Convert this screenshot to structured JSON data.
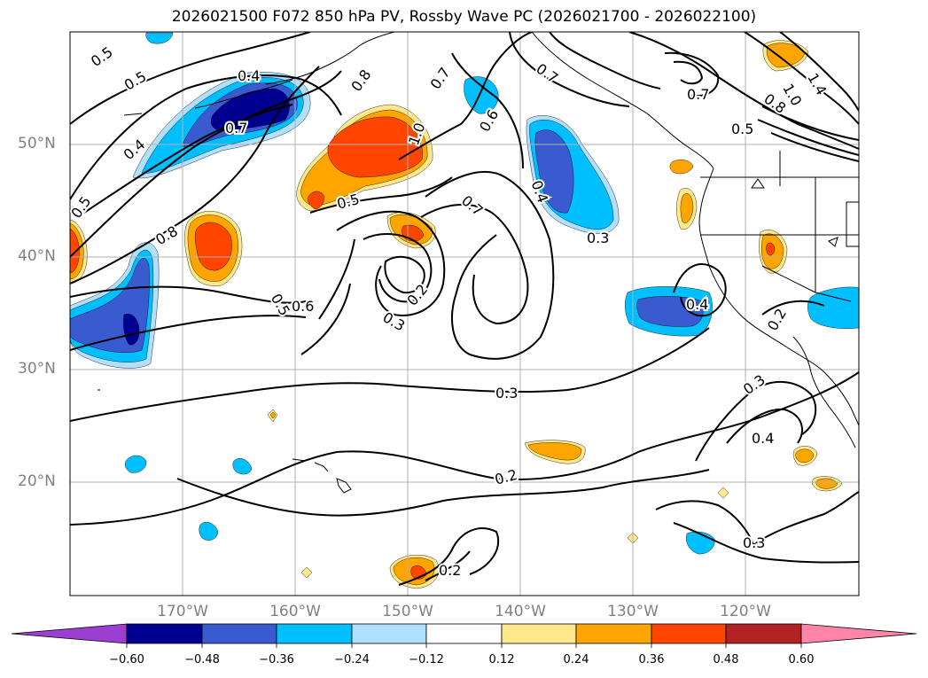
{
  "title": "2026021500 F072 850 hPa PV, Rossby Wave PC (2026021700 - 2026022100)",
  "lat_labels": [
    "50°N",
    "40°N",
    "30°N",
    "20°N"
  ],
  "lon_labels": [
    "170°W",
    "160°W",
    "150°W",
    "140°W",
    "130°W",
    "120°W"
  ],
  "contour_labels": [
    "0.5",
    "0.5",
    "0.4",
    "0.4",
    "0.7",
    "0.8",
    "0.5",
    "0.8",
    "1.0",
    "0.5",
    "0.7",
    "0.6",
    "0.7",
    "0.4",
    "0.3",
    "0.6",
    "0.5",
    "0.3",
    "0.2",
    "0.3",
    "0.2",
    "0.2",
    "0.4",
    "0.3",
    "0.4",
    "0.3",
    "0.2",
    "0.7",
    "0.7",
    "0.8",
    "0.5",
    "1.0",
    "1.4"
  ],
  "colorbar": {
    "ticks": [
      "−0.60",
      "−0.48",
      "−0.36",
      "−0.24",
      "−0.12",
      "0.12",
      "0.24",
      "0.36",
      "0.48",
      "0.60"
    ],
    "colors": [
      "#9a3fd0",
      "#000090",
      "#3a5bd0",
      "#00bfff",
      "#b0e0ff",
      "#ffffff",
      "#ffe88a",
      "#ffa500",
      "#ff4500",
      "#b22222",
      "#ff85a8",
      "#ff85a8"
    ]
  },
  "fill_colors": {
    "neg1": "#b0e0ff",
    "neg2": "#00bfff",
    "neg3": "#3a5bd0",
    "neg4": "#000090",
    "pos1": "#ffe88a",
    "pos2": "#ffa500",
    "pos3": "#ff4500"
  }
}
